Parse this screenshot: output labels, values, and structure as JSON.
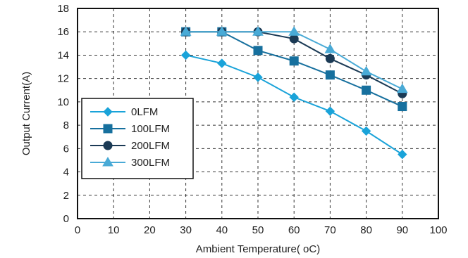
{
  "chart_data": {
    "type": "line",
    "title": "",
    "xlabel": "Ambient Temperature( oC)",
    "ylabel": "Output Current(A)",
    "xlim": [
      0,
      100
    ],
    "ylim": [
      0,
      18
    ],
    "xticks": [
      0,
      10,
      20,
      30,
      40,
      50,
      60,
      70,
      80,
      90,
      100
    ],
    "yticks": [
      0,
      2,
      4,
      6,
      8,
      10,
      12,
      14,
      16,
      18
    ],
    "grid": true,
    "legend_position": "left",
    "x": [
      30,
      40,
      50,
      60,
      70,
      80,
      90
    ],
    "series": [
      {
        "name": "0LFM",
        "marker": "diamond",
        "color": "#1aa3d9",
        "values": [
          14.0,
          13.3,
          12.1,
          10.4,
          9.2,
          7.5,
          5.5
        ]
      },
      {
        "name": "100LFM",
        "marker": "square",
        "color": "#17709e",
        "values": [
          16.0,
          16.0,
          14.4,
          13.5,
          12.3,
          11.0,
          9.6
        ]
      },
      {
        "name": "200LFM",
        "marker": "circle",
        "color": "#1b3a55",
        "values": [
          16.0,
          16.0,
          16.0,
          15.4,
          13.7,
          12.3,
          10.7
        ]
      },
      {
        "name": "300LFM",
        "marker": "triangle",
        "color": "#49aad6",
        "values": [
          16.0,
          16.0,
          16.0,
          16.0,
          14.5,
          12.6,
          11.1
        ]
      }
    ]
  }
}
